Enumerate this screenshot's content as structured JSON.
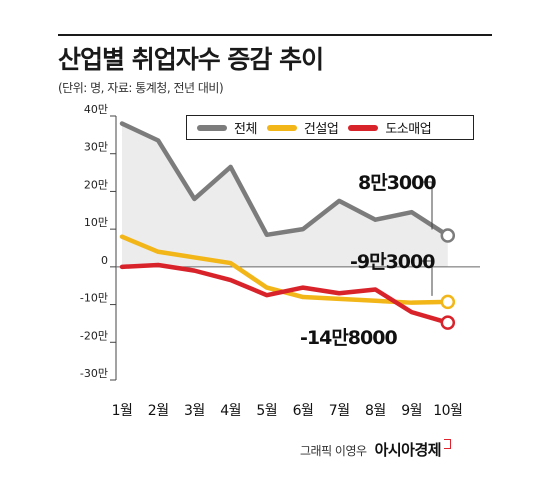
{
  "title": "산업별 취업자수 증감 추이",
  "subtitle": "(단위: 명, 자료: 통계청, 전년 대비)",
  "colors": {
    "total": "#7c7c7c",
    "construction": "#f2b619",
    "wholesale": "#d9232b",
    "area": "#ececec"
  },
  "chart_data": {
    "type": "line",
    "categories": [
      "1월",
      "2월",
      "3월",
      "4월",
      "5월",
      "6월",
      "7월",
      "8월",
      "9월",
      "10월"
    ],
    "y_tick_labels": [
      "40만",
      "30만",
      "20만",
      "10만",
      "0",
      "-10만",
      "-20만",
      "-30만"
    ],
    "ylim": [
      -300000,
      400000
    ],
    "grid": false,
    "legend_position": "top-right",
    "series": [
      {
        "name": "전체",
        "color": "#7c7c7c",
        "values": [
          380000,
          335000,
          180000,
          265000,
          85000,
          100000,
          175000,
          125000,
          145000,
          83000
        ]
      },
      {
        "name": "건설업",
        "color": "#f2b619",
        "values": [
          80000,
          40000,
          25000,
          10000,
          -55000,
          -80000,
          -85000,
          -90000,
          -95000,
          -93000
        ]
      },
      {
        "name": "도소매업",
        "color": "#d9232b",
        "values": [
          0,
          5000,
          -10000,
          -35000,
          -75000,
          -55000,
          -70000,
          -60000,
          -120000,
          -148000
        ]
      }
    ],
    "annotations": [
      "8만3000",
      "-9만3000",
      "-14만8000"
    ]
  },
  "credit": "그래픽 이영우",
  "brand": "아시아경제"
}
